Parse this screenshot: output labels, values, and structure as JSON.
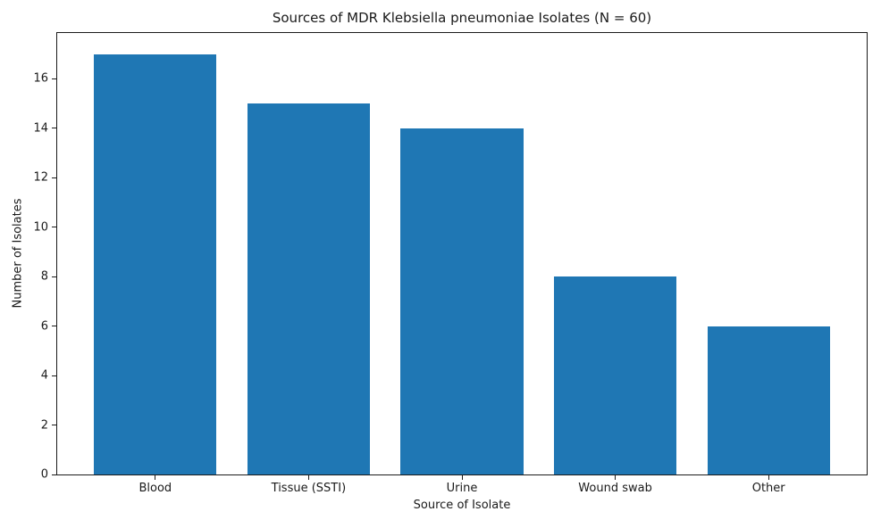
{
  "chart_data": {
    "type": "bar",
    "title": "Sources of MDR Klebsiella pneumoniae Isolates (N = 60)",
    "xlabel": "Source of Isolate",
    "ylabel": "Number of Isolates",
    "categories": [
      "Blood",
      "Tissue (SSTI)",
      "Urine",
      "Wound swab",
      "Other"
    ],
    "values": [
      17,
      15,
      14,
      8,
      6
    ],
    "yticks": [
      0,
      2,
      4,
      6,
      8,
      10,
      12,
      14,
      16
    ],
    "ylim": [
      0,
      17.85
    ],
    "xlim": [
      -0.64,
      4.64
    ],
    "bar_width_units": 0.8,
    "bar_color": "#1f77b4",
    "axis_color": "#1a1a1a",
    "grid": false,
    "legend": "none"
  }
}
